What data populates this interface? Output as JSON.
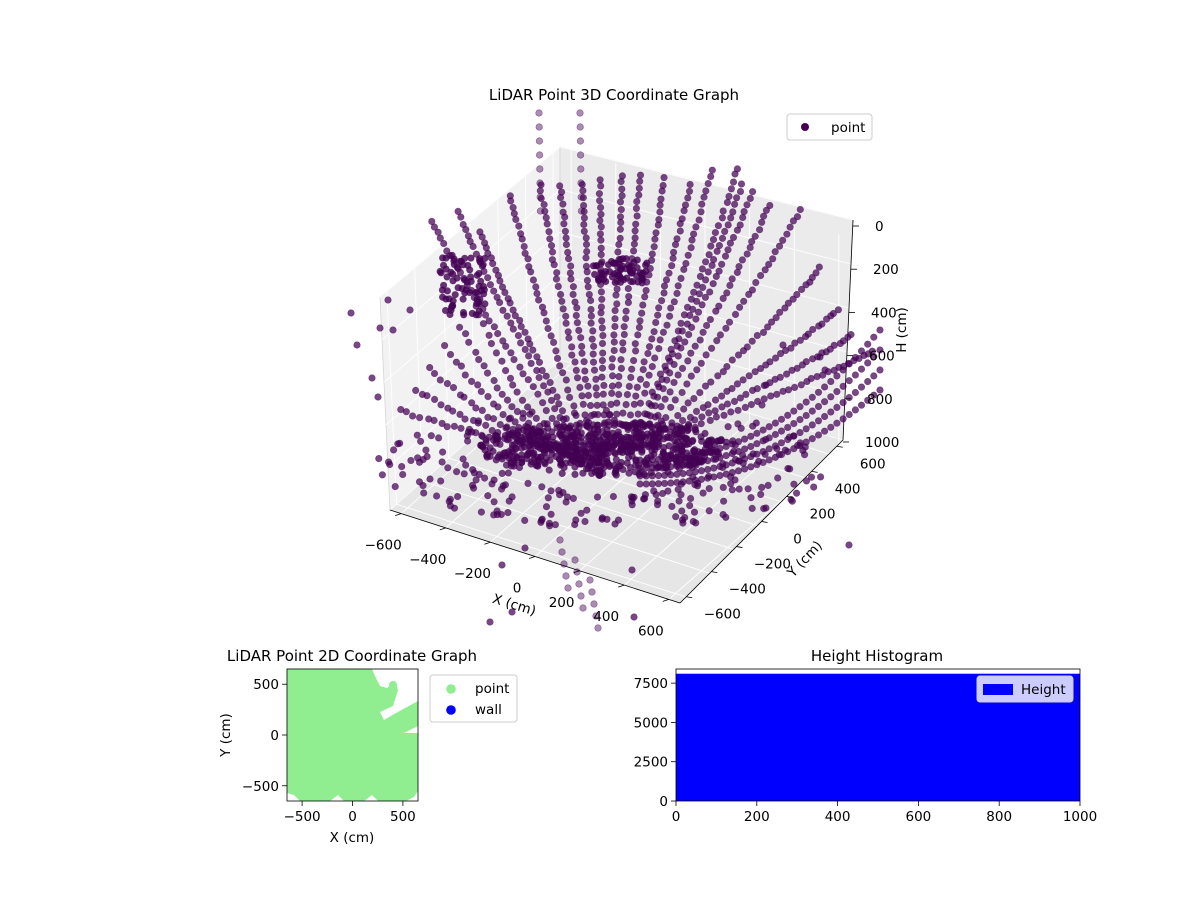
{
  "chart_data": [
    {
      "type": "scatter",
      "title": "LiDAR Point 3D Coordinate Graph",
      "projection": "3d",
      "xlabel": "X (cm)",
      "ylabel": "Y (cm)",
      "zlabel": "H (cm)",
      "xlim": [
        -650,
        650
      ],
      "ylim": [
        -650,
        650
      ],
      "zlim": [
        1000,
        0
      ],
      "z_axis_inverted": true,
      "xticks": [
        "−600",
        "−400",
        "−200",
        "0",
        "200",
        "400",
        "600"
      ],
      "yticks": [
        "−600",
        "−400",
        "−200",
        "0",
        "200",
        "400",
        "600"
      ],
      "zticks": [
        "0",
        "200",
        "400",
        "600",
        "800",
        "1000"
      ],
      "grid": true,
      "legend_position": "top-right",
      "series": [
        {
          "name": "point",
          "color": "#440154",
          "description_shape": "radial fan of scan lines converging near origin at high H"
        }
      ]
    },
    {
      "type": "scatter",
      "title": "LiDAR Point 2D Coordinate Graph",
      "xlabel": "X (cm)",
      "ylabel": "Y (cm)",
      "xlim": [
        -650,
        650
      ],
      "ylim": [
        -650,
        650
      ],
      "xticks": [
        "−500",
        "0",
        "500"
      ],
      "yticks": [
        "−500",
        "0",
        "500"
      ],
      "legend_position": "outside-right",
      "series": [
        {
          "name": "point",
          "color": "#90ee90"
        },
        {
          "name": "wall",
          "color": "#0000ff"
        }
      ]
    },
    {
      "type": "bar",
      "title": "Height Histogram",
      "xlim": [
        0,
        1000
      ],
      "ylim": [
        0,
        8400
      ],
      "xticks": [
        "0",
        "200",
        "400",
        "600",
        "800",
        "1000"
      ],
      "yticks": [
        "0",
        "2500",
        "5000",
        "7500"
      ],
      "legend_position": "top-right",
      "series": [
        {
          "name": "Height",
          "color": "#0000ff",
          "bins": [
            [
              0,
              1000
            ]
          ],
          "values": [
            8100
          ]
        }
      ]
    }
  ]
}
